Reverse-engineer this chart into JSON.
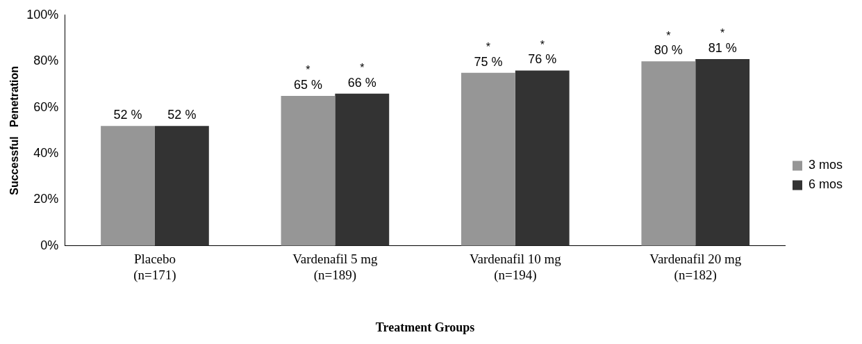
{
  "chart_data": {
    "type": "bar",
    "xlabel": "Treatment Groups",
    "ylabel": "Successful   Penetration",
    "categories": [
      "Placebo\n(n=171)",
      "Vardenafil 5 mg\n(n=189)",
      "Vardenafil 10 mg\n(n=194)",
      "Vardenafil 20 mg\n(n=182)"
    ],
    "series": [
      {
        "name": "3 mos",
        "color": "#969696",
        "values": [
          52,
          65,
          75,
          80
        ],
        "value_labels": [
          "52 %",
          "65 %",
          "75 %",
          "80 %"
        ]
      },
      {
        "name": "6 mos",
        "color": "#333333",
        "values": [
          52,
          66,
          76,
          81
        ],
        "value_labels": [
          "52 %",
          "66 %",
          "76 %",
          "81 %"
        ]
      }
    ],
    "ylim": [
      0,
      100
    ],
    "yticks": [
      {
        "value": 0,
        "label": "0%"
      },
      {
        "value": 20,
        "label": "20%"
      },
      {
        "value": 40,
        "label": "40%"
      },
      {
        "value": 60,
        "label": "60%"
      },
      {
        "value": 80,
        "label": "80%"
      },
      {
        "value": 100,
        "label": "100%"
      }
    ],
    "grid": false,
    "legend": "right",
    "annotations": [
      {
        "text": "*",
        "x": "Vardenafil 5 mg\n(n=189)",
        "y": 65
      },
      {
        "text": "*",
        "x": "Vardenafil 5 mg\n(n=189)",
        "y": 66
      },
      {
        "text": "*",
        "x": "Vardenafil 10 mg\n(n=194)",
        "y": 75
      },
      {
        "text": "*",
        "x": "Vardenafil 10 mg\n(n=194)",
        "y": 76
      },
      {
        "text": "*",
        "x": "Vardenafil 20 mg\n(n=182)",
        "y": 80
      },
      {
        "text": "*",
        "x": "Vardenafil 20 mg\n(n=182)",
        "y": 81
      }
    ]
  }
}
